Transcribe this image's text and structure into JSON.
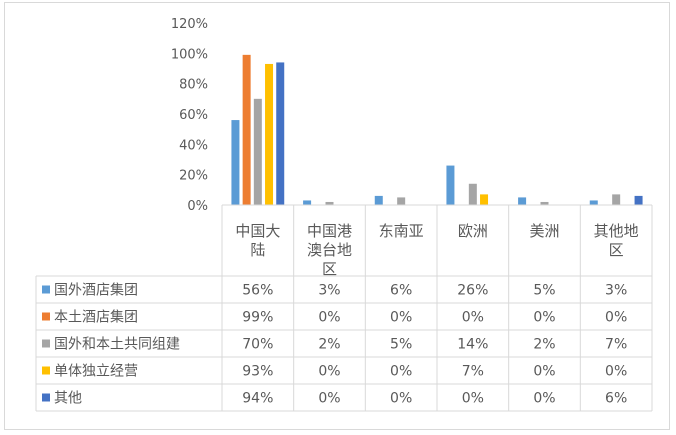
{
  "chart_data": {
    "type": "bar",
    "title": "",
    "xlabel": "",
    "ylabel": "",
    "ylim": [
      0,
      120
    ],
    "yticks": [
      "0%",
      "20%",
      "40%",
      "60%",
      "80%",
      "100%",
      "120%"
    ],
    "grid": false,
    "legend": "data-table-left",
    "categories": [
      [
        "中国大",
        "陆"
      ],
      [
        "中国港",
        "澳台地",
        "区"
      ],
      [
        "东南亚"
      ],
      [
        "欧洲"
      ],
      [
        "美洲"
      ],
      [
        "其他地",
        "区"
      ]
    ],
    "series": [
      {
        "name": "国外酒店集团",
        "color": "#5b9bd5",
        "values": [
          56,
          3,
          6,
          26,
          5,
          3
        ],
        "labels": [
          "56%",
          "3%",
          "6%",
          "26%",
          "5%",
          "3%"
        ]
      },
      {
        "name": "本土酒店集团",
        "color": "#ed7d31",
        "values": [
          99,
          0,
          0,
          0,
          0,
          0
        ],
        "labels": [
          "99%",
          "0%",
          "0%",
          "0%",
          "0%",
          "0%"
        ]
      },
      {
        "name": "国外和本土共同组建",
        "color": "#a5a5a5",
        "values": [
          70,
          2,
          5,
          14,
          2,
          7
        ],
        "labels": [
          "70%",
          "2%",
          "5%",
          "14%",
          "2%",
          "7%"
        ]
      },
      {
        "name": "单体独立经营",
        "color": "#ffc000",
        "values": [
          93,
          0,
          0,
          7,
          0,
          0
        ],
        "labels": [
          "93%",
          "0%",
          "0%",
          "7%",
          "0%",
          "0%"
        ]
      },
      {
        "name": "其他",
        "color": "#4472c4",
        "values": [
          94,
          0,
          0,
          0,
          0,
          6
        ],
        "labels": [
          "94%",
          "0%",
          "0%",
          "0%",
          "0%",
          "6%"
        ]
      }
    ]
  }
}
